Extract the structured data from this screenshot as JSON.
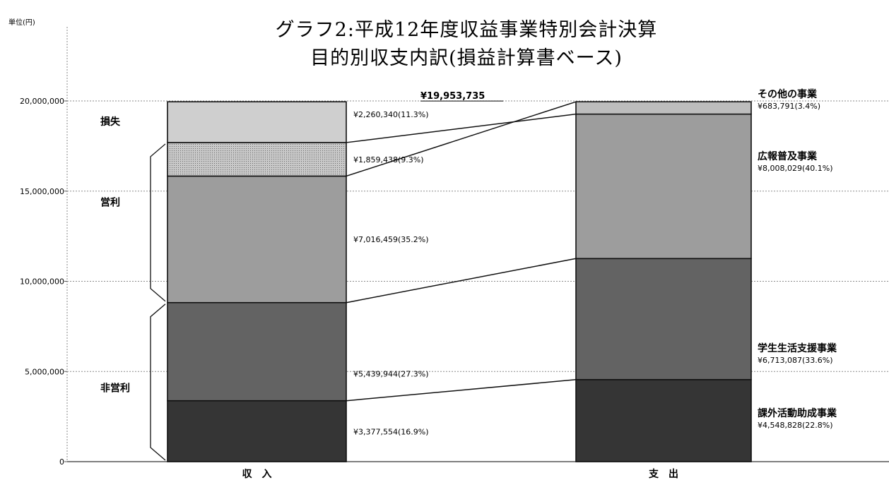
{
  "chart_data": {
    "type": "bar",
    "title": "グラフ2:平成12年度収益事業特別会計決算",
    "subtitle": "目的別収支内訳(損益計算書ベース)",
    "ylabel": "単位(円)",
    "ylim": [
      0,
      20000000
    ],
    "yticks": [
      "20,000,000",
      "15,000,000",
      "10,000,000",
      "5,000,000",
      "0"
    ],
    "ytick_values": [
      20000000,
      15000000,
      10000000,
      5000000,
      0
    ],
    "grid": true,
    "total_label": "¥19,953,735",
    "total_value": 19953735,
    "categories": [
      "収　入",
      "支　出"
    ],
    "income": [
      {
        "value": 3377554,
        "label": "¥3,377,554(16.9%)",
        "color": "#353535"
      },
      {
        "value": 5439944,
        "label": "¥5,439,944(27.3%)",
        "color": "#636363"
      },
      {
        "value": 7016459,
        "label": "¥7,016,459(35.2%)",
        "color": "#9d9d9d"
      },
      {
        "value": 1859438,
        "label": "¥1,859,438(9.3%)",
        "color": "#bdbdbd",
        "hatched": true
      },
      {
        "value": 2260340,
        "label": "¥2,260,340(11.3%)",
        "color": "#cfcfcf"
      }
    ],
    "expense": [
      {
        "value": 4548828,
        "name": "課外活動助成事業",
        "label": "¥4,548,828(22.8%)",
        "color": "#353535"
      },
      {
        "value": 6713087,
        "name": "学生生活支援事業",
        "label": "¥6,713,087(33.6%)",
        "color": "#636363"
      },
      {
        "value": 8008029,
        "name": "広報普及事業",
        "label": "¥8,008,029(40.1%)",
        "color": "#9d9d9d"
      },
      {
        "value": 683791,
        "name": "その他の事業",
        "label": "¥683,791(3.4%)",
        "color": "#bdbdbd"
      }
    ],
    "groups": [
      {
        "name": "非営利",
        "from": 0,
        "to": 8817498
      },
      {
        "name": "営利",
        "from": 8817498,
        "to": 17693395
      },
      {
        "name": "損失",
        "from": 17693395,
        "to": 19953735
      }
    ]
  }
}
